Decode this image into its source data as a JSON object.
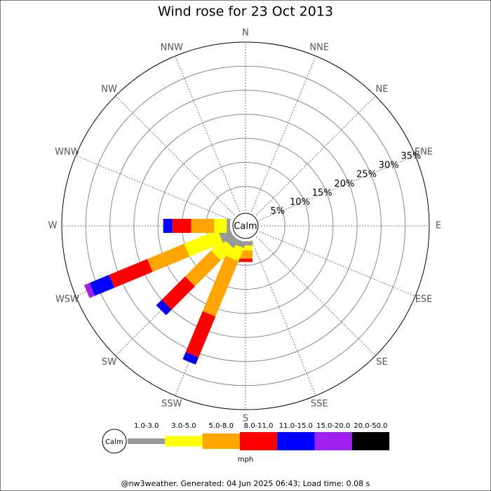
{
  "chart_data": {
    "type": "windrose",
    "title": "Wind rose for 23 Oct 2013",
    "directions": [
      "N",
      "NNE",
      "NE",
      "ENE",
      "E",
      "ESE",
      "SE",
      "SSE",
      "S",
      "SSW",
      "SW",
      "WSW",
      "W",
      "WNW",
      "NW",
      "NNW"
    ],
    "calm_label": "Calm",
    "unit": "mph",
    "rlim": [
      0,
      35
    ],
    "rticks": [
      {
        "value": 5,
        "label": "5%"
      },
      {
        "value": 10,
        "label": "10%"
      },
      {
        "value": 15,
        "label": "15%"
      },
      {
        "value": 20,
        "label": "20%"
      },
      {
        "value": 25,
        "label": "25%"
      },
      {
        "value": 30,
        "label": "30%"
      },
      {
        "value": 35,
        "label": "35%"
      }
    ],
    "series": [
      {
        "name": "1.0-3.0",
        "color": "#999999",
        "values": [
          0,
          0,
          0,
          0,
          0,
          0,
          0,
          0,
          0.9,
          1.2,
          1.9,
          2.5,
          0.7,
          0,
          0,
          0
        ]
      },
      {
        "name": "3.0-5.0",
        "color": "#ffff00",
        "values": [
          0,
          0,
          0,
          0,
          0,
          0,
          0,
          0,
          1,
          2.9,
          3.6,
          7.5,
          2.6,
          0,
          0,
          0
        ]
      },
      {
        "name": "5.0-8.0",
        "color": "#ffa500",
        "values": [
          0,
          0,
          0,
          0,
          0,
          0,
          0,
          0,
          1.7,
          12.5,
          7.6,
          8.3,
          4.8,
          0,
          0,
          0
        ]
      },
      {
        "name": "8.0-11.0",
        "color": "#ff0000",
        "values": [
          0,
          0,
          0,
          0,
          0,
          0,
          0,
          0,
          0.7,
          9.2,
          6.9,
          8.6,
          3.9,
          0,
          0,
          0
        ]
      },
      {
        "name": "11.0-15.0",
        "color": "#0000ff",
        "values": [
          0,
          0,
          0,
          0,
          0,
          0,
          0,
          0,
          0,
          1.6,
          1.6,
          4.4,
          1.9,
          0,
          0,
          0
        ]
      },
      {
        "name": "15.0-20.0",
        "color": "#a020f0",
        "values": [
          0,
          0,
          0,
          0,
          0,
          0,
          0,
          0,
          0,
          0,
          0,
          1.2,
          0,
          0,
          0,
          0
        ]
      },
      {
        "name": "20.0-50.0",
        "color": "#000000",
        "values": [
          0,
          0,
          0,
          0,
          0,
          0,
          0,
          0,
          0,
          0,
          0,
          0,
          0,
          0,
          0,
          0
        ]
      }
    ],
    "footer": "@nw3weather. Generated: 04 Jun 2025 06:43; Load time: 0.08 s"
  }
}
